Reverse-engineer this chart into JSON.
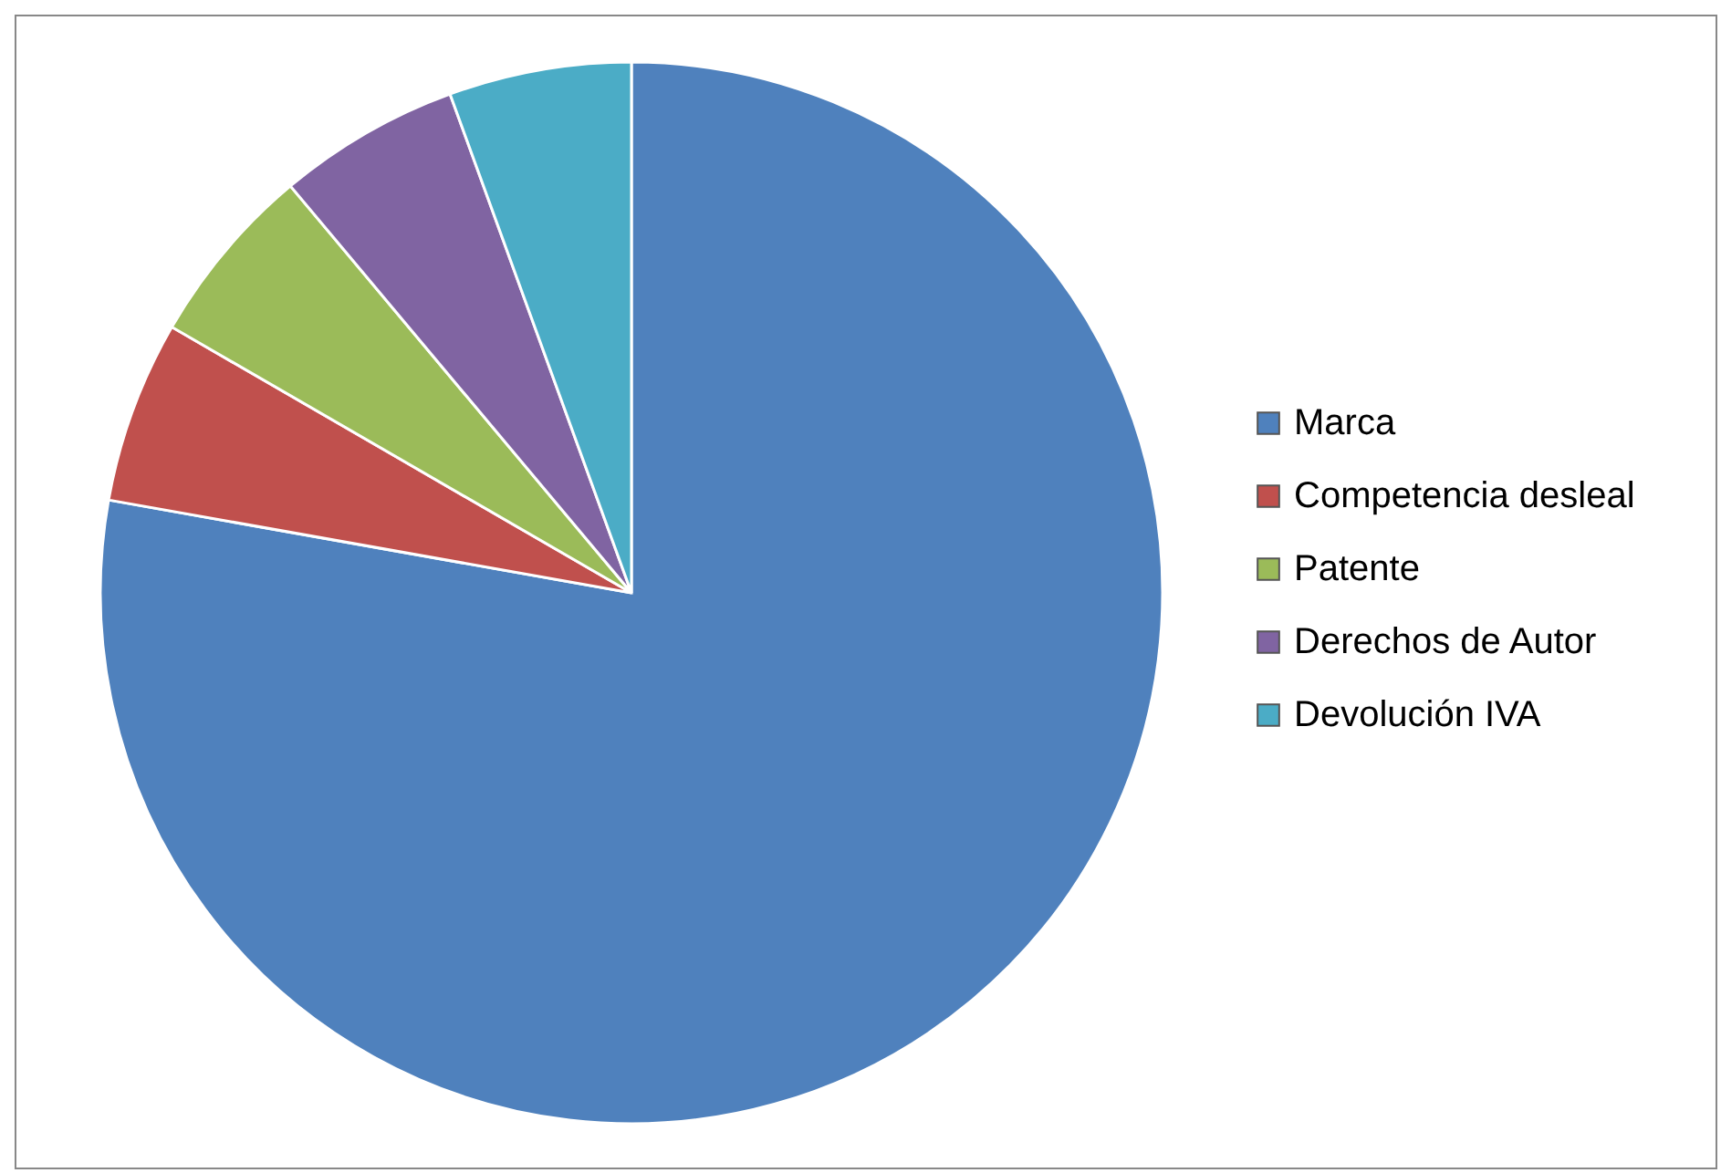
{
  "chart_data": {
    "type": "pie",
    "categories": [
      "Marca",
      "Competencia desleal",
      "Patente",
      "Derechos de Autor",
      "Devolución IVA"
    ],
    "values": [
      77.8,
      5.55,
      5.55,
      5.55,
      5.55
    ],
    "colors": [
      "#4f81bd",
      "#c0504d",
      "#9bbb59",
      "#8064a2",
      "#4bacc6"
    ],
    "legend": "right"
  }
}
